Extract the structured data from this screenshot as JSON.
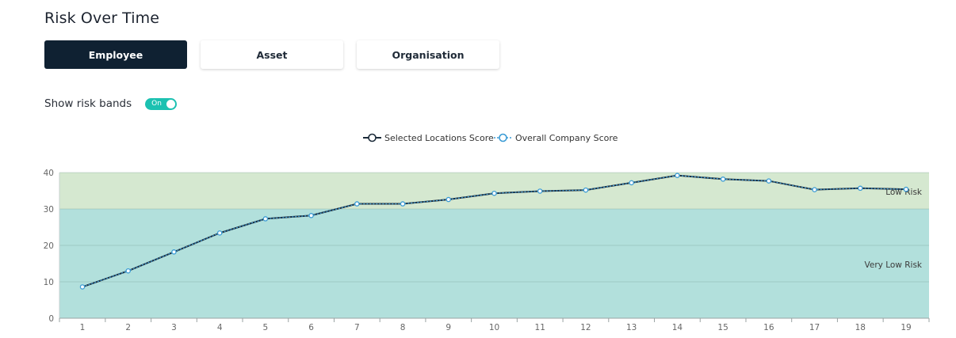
{
  "header": {
    "title": "Risk Over Time"
  },
  "tabs": [
    {
      "label": "Employee",
      "active": true
    },
    {
      "label": "Asset",
      "active": false
    },
    {
      "label": "Organisation",
      "active": false
    }
  ],
  "risk_bands_toggle": {
    "label": "Show risk bands",
    "state_text": "On",
    "on": true
  },
  "colors": {
    "accent": "#1cc1b1",
    "active_tab": "#0f2132",
    "low_risk_band": "#d5e8d0",
    "very_low_risk_band": "#b2e0dc",
    "selected_series": "#1c2b3a",
    "overall_series": "#3a9bd5"
  },
  "chart_data": {
    "type": "line",
    "legend_position": "top-center",
    "x": [
      1,
      2,
      3,
      4,
      5,
      6,
      7,
      8,
      9,
      10,
      11,
      12,
      13,
      14,
      15,
      16,
      17,
      18,
      19
    ],
    "ylim": [
      0,
      40
    ],
    "yticks": [
      0,
      10,
      20,
      30,
      40
    ],
    "grid": true,
    "series": [
      {
        "name": "Selected Locations Score",
        "style": "solid-dark",
        "values": [
          8.6,
          13.0,
          18.2,
          23.4,
          27.3,
          28.2,
          31.4,
          31.4,
          32.6,
          34.3,
          34.9,
          35.2,
          37.2,
          39.2,
          38.2,
          37.7,
          35.3,
          35.7,
          35.4
        ]
      },
      {
        "name": "Overall Company Score",
        "style": "dashed-blue",
        "values": [
          8.6,
          13.0,
          18.2,
          23.4,
          27.3,
          28.2,
          31.4,
          31.4,
          32.6,
          34.3,
          34.9,
          35.2,
          37.2,
          39.2,
          38.2,
          37.7,
          35.3,
          35.7,
          35.4
        ]
      }
    ],
    "bands": [
      {
        "label": "Very Low Risk",
        "from": 0,
        "to": 30
      },
      {
        "label": "Low Risk",
        "from": 30,
        "to": 40
      }
    ]
  }
}
